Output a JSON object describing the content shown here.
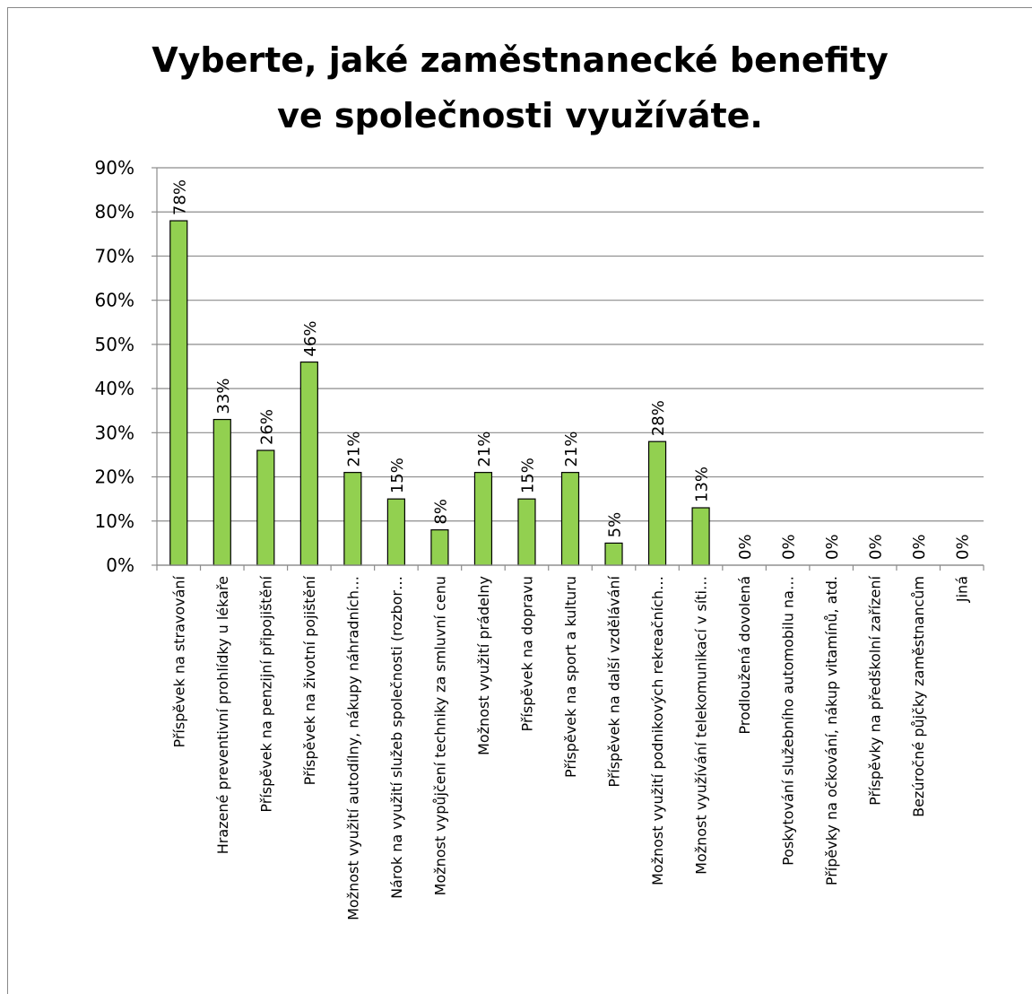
{
  "chart_data": {
    "type": "bar",
    "title": "Vyberte, jaké zaměstnanecké benefity ve společnosti využíváte.",
    "categories": [
      "Příspěvek na stravování",
      "Hrazené preventivní prohlídky u lékaře",
      "Příspěvek na penzijní připojištění",
      "Příspěvek na životní pojištění",
      "Možnost využití autodílny, nákupy náhradních…",
      "Nárok na využití služeb společnosti (rozbor…",
      "Možnost vypůjčení techniky za smluvní cenu",
      "Možnost využití prádelny",
      "Příspěvek na dopravu",
      "Příspěvek na sport a kulturu",
      "Příspěvek na další vzdělávání",
      "Možnost využití podnikových rekreačních…",
      "Možnost využívání telekomunikací v síti…",
      "Prodloužená dovolená",
      "Poskytování služebního automobilu na…",
      "Přípěvky na očkování, nákup vitamínů, atd.",
      "Příspěvky na předškolní zařízení",
      "Bezúročné půjčky zaměstnancům",
      "Jiná"
    ],
    "values": [
      78,
      33,
      26,
      46,
      21,
      15,
      8,
      21,
      15,
      21,
      5,
      28,
      13,
      0,
      0,
      0,
      0,
      0,
      0
    ],
    "value_labels": [
      "78%",
      "33%",
      "26%",
      "46%",
      "21%",
      "15%",
      "8%",
      "21%",
      "15%",
      "21%",
      "5%",
      "28%",
      "13%",
      "0%",
      "0%",
      "0%",
      "0%",
      "0%",
      "0%"
    ],
    "color": "#92d050",
    "ylim": [
      0,
      90
    ],
    "yticks": [
      {
        "value": 0,
        "label": "0%"
      },
      {
        "value": 10,
        "label": "10%"
      },
      {
        "value": 20,
        "label": "20%"
      },
      {
        "value": 30,
        "label": "30%"
      },
      {
        "value": 40,
        "label": "40%"
      },
      {
        "value": 50,
        "label": "50%"
      },
      {
        "value": 60,
        "label": "60%"
      },
      {
        "value": 70,
        "label": "70%"
      },
      {
        "value": 80,
        "label": "80%"
      },
      {
        "value": 90,
        "label": "90%"
      }
    ],
    "grid": true
  }
}
